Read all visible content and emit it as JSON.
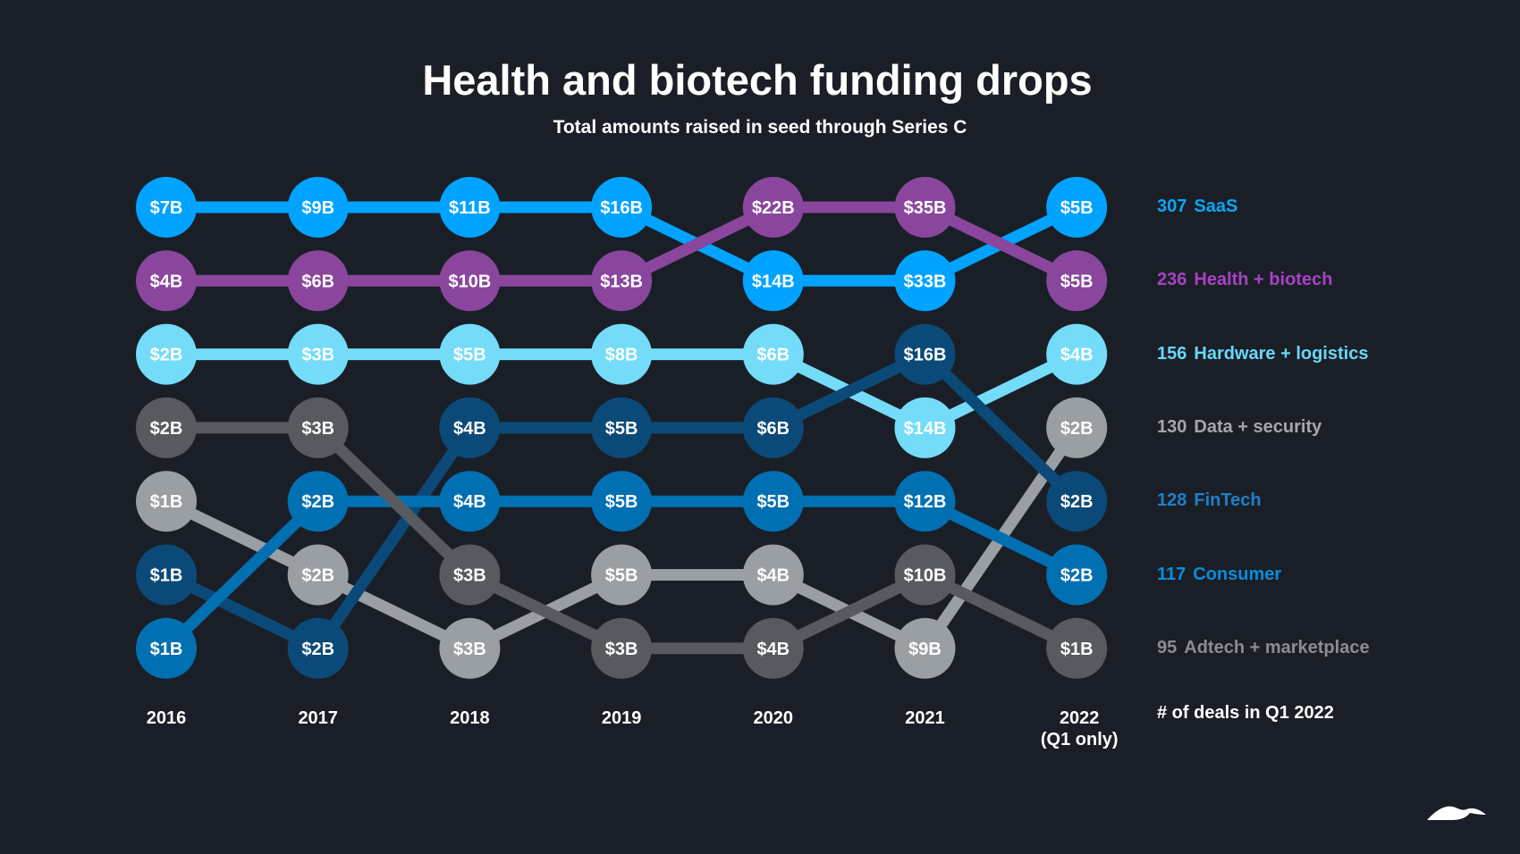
{
  "header": {
    "title": "Health and biotech funding drops",
    "subtitle": "Total amounts raised in seed through Series C"
  },
  "chart_data": {
    "type": "bump",
    "title": "Health and biotech funding drops",
    "subtitle": "Total amounts raised in seed through Series C",
    "categories": [
      "2016",
      "2017",
      "2018",
      "2019",
      "2020",
      "2021",
      "2022"
    ],
    "category_labels": [
      "2016",
      "2017",
      "2018",
      "2019",
      "2020",
      "2021",
      "2022\n(Q1 only)"
    ],
    "unit": "$B",
    "rank_axis": "rank by amount raised, 1 = top",
    "legend_title": "# of deals in Q1 2022",
    "legend_placement": "right",
    "series": [
      {
        "name": "SaaS",
        "deals_q1_2022": 307,
        "color": "#00a3ff",
        "text_color": "#0aa6f5",
        "ranks": [
          1,
          1,
          1,
          1,
          2,
          2,
          1
        ],
        "values": [
          7,
          9,
          11,
          16,
          14,
          33,
          5
        ],
        "labels": [
          "$7B",
          "$9B",
          "$11B",
          "$16B",
          "$14B",
          "$33B",
          "$5B"
        ]
      },
      {
        "name": "Health + biotech",
        "deals_q1_2022": 236,
        "color": "#8a469d",
        "text_color": "#a742c4",
        "ranks": [
          2,
          2,
          2,
          2,
          1,
          1,
          2
        ],
        "values": [
          4,
          6,
          10,
          13,
          22,
          35,
          5
        ],
        "labels": [
          "$4B",
          "$6B",
          "$10B",
          "$13B",
          "$22B",
          "$35B",
          "$5B"
        ]
      },
      {
        "name": "Hardware + logistics",
        "deals_q1_2022": 156,
        "color": "#74dcf8",
        "text_color": "#6ad6f5",
        "ranks": [
          3,
          3,
          3,
          3,
          3,
          4,
          3
        ],
        "values": [
          2,
          3,
          5,
          8,
          6,
          14,
          4
        ],
        "labels": [
          "$2B",
          "$3B",
          "$5B",
          "$8B",
          "$6B",
          "$14B",
          "$4B"
        ]
      },
      {
        "name": "Data + security",
        "deals_q1_2022": 130,
        "color": "#9a9fa3",
        "text_color": "#a4a8ac",
        "ranks": [
          5,
          6,
          7,
          6,
          6,
          7,
          4
        ],
        "values": [
          1,
          2,
          3,
          5,
          4,
          9,
          2
        ],
        "labels": [
          "$1B",
          "$2B",
          "$3B",
          "$5B",
          "$4B",
          "$9B",
          "$2B"
        ]
      },
      {
        "name": "FinTech",
        "deals_q1_2022": 128,
        "color": "#0b4a78",
        "text_color": "#1f7fc6",
        "ranks": [
          6,
          7,
          4,
          4,
          4,
          3,
          5
        ],
        "values": [
          1,
          2,
          4,
          5,
          6,
          16,
          2
        ],
        "labels": [
          "$1B",
          "$2B",
          "$4B",
          "$5B",
          "$6B",
          "$16B",
          "$2B"
        ]
      },
      {
        "name": "Consumer",
        "deals_q1_2022": 117,
        "color": "#0070b2",
        "text_color": "#0a8cdc",
        "ranks": [
          7,
          5,
          5,
          5,
          5,
          5,
          6
        ],
        "values": [
          1,
          2,
          4,
          5,
          5,
          12,
          2
        ],
        "labels": [
          "$1B",
          "$2B",
          "$4B",
          "$5B",
          "$5B",
          "$12B",
          "$2B"
        ]
      },
      {
        "name": "Adtech + marketplace",
        "deals_q1_2022": 95,
        "color": "#575b60",
        "text_color": "#8a8d91",
        "ranks": [
          4,
          4,
          6,
          7,
          7,
          6,
          7
        ],
        "values": [
          2,
          3,
          3,
          3,
          4,
          10,
          1
        ],
        "labels": [
          "$2B",
          "$3B",
          "$3B",
          "$3B",
          "$4B",
          "$10B",
          "$1B"
        ]
      }
    ]
  },
  "legend": {
    "title": "# of deals in Q1 2022"
  }
}
